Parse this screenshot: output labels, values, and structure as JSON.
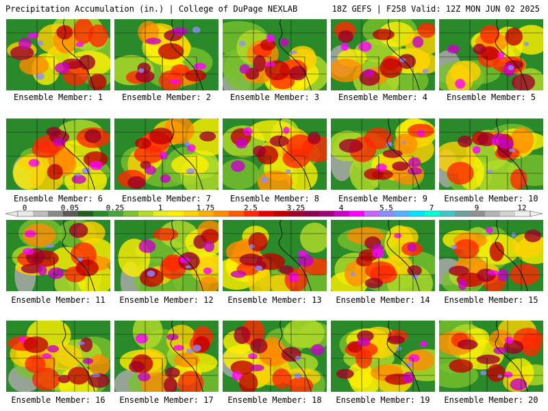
{
  "header": {
    "title": "Precipitation Accumulation (in.) | College of DuPage NEXLAB",
    "run_info": "18Z GEFS | F258 Valid: 12Z MON JUN 02 2025"
  },
  "colors": {
    "background": "#ffffff",
    "base_green": "#2a8a2a"
  },
  "legend": {
    "labels": [
      "0",
      "0.05",
      "0.25",
      "1",
      "1.75",
      "2.5",
      "3.25",
      "4",
      "5.5",
      "7",
      "9",
      "12"
    ],
    "colors": [
      "#e8e8e8",
      "#bdbdbd",
      "#8a8a8a",
      "#5a5a5a",
      "#1f5f1f",
      "#2a8a2a",
      "#45a53a",
      "#79c12e",
      "#b4dc28",
      "#e6f01e",
      "#fff000",
      "#ffd200",
      "#ffb000",
      "#ff8c00",
      "#ff5a00",
      "#ff2800",
      "#e60000",
      "#c00000",
      "#a00028",
      "#8c0050",
      "#a0007a",
      "#c800c8",
      "#ff00ff",
      "#c864ff",
      "#8c8cff",
      "#50b4ff",
      "#00e6ff",
      "#00ffd2",
      "#40c8c8",
      "#6ea0a0",
      "#909090",
      "#b4b4b4",
      "#d2d2d2",
      "#f0f0f0"
    ]
  },
  "panels": [
    {
      "label": "Ensemble Member: 1"
    },
    {
      "label": "Ensemble Member: 2"
    },
    {
      "label": "Ensemble Member: 3"
    },
    {
      "label": "Ensemble Member: 4"
    },
    {
      "label": "Ensemble Member: 5"
    },
    {
      "label": "Ensemble Member: 6"
    },
    {
      "label": "Ensemble Member: 7"
    },
    {
      "label": "Ensemble Member: 8"
    },
    {
      "label": "Ensemble Member: 9"
    },
    {
      "label": "Ensemble Member: 10"
    },
    {
      "label": "Ensemble Member: 11"
    },
    {
      "label": "Ensemble Member: 12"
    },
    {
      "label": "Ensemble Member: 13"
    },
    {
      "label": "Ensemble Member: 14"
    },
    {
      "label": "Ensemble Member: 15"
    },
    {
      "label": "Ensemble Member: 16"
    },
    {
      "label": "Ensemble Member: 17"
    },
    {
      "label": "Ensemble Member: 18"
    },
    {
      "label": "Ensemble Member: 19"
    },
    {
      "label": "Ensemble Member: 20"
    }
  ]
}
